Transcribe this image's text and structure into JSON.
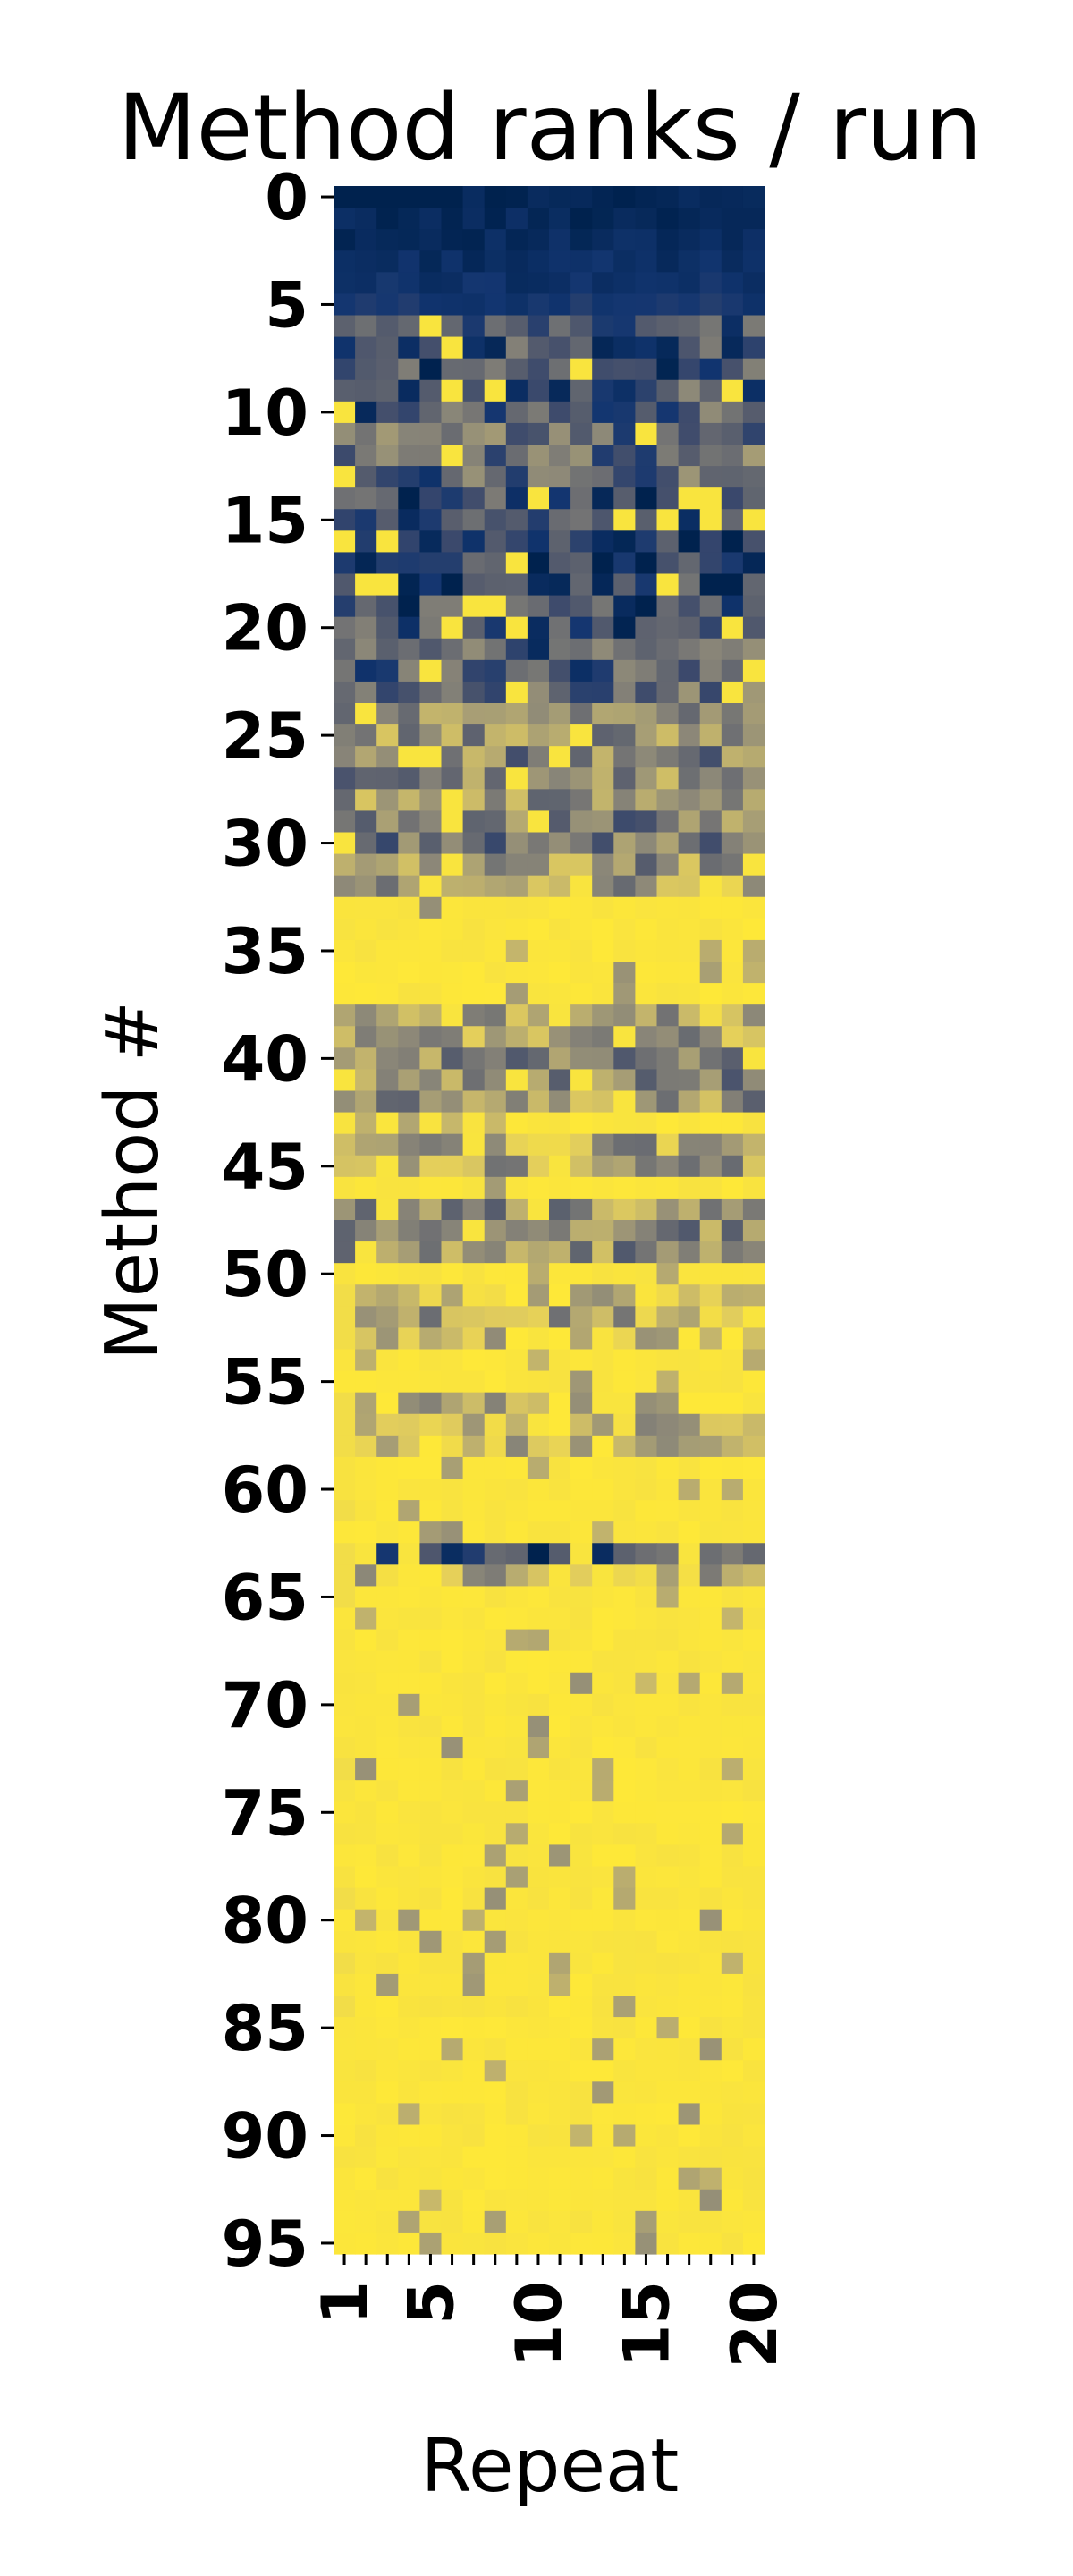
{
  "chart_data": {
    "type": "heatmap",
    "title": "Method ranks / run",
    "xlabel": "Repeat",
    "ylabel": "Method #",
    "n_rows": 96,
    "n_cols": 20,
    "x_ticks": [
      1,
      5,
      10,
      15,
      20
    ],
    "y_ticks": [
      0,
      5,
      10,
      15,
      20,
      25,
      30,
      35,
      40,
      45,
      50,
      55,
      60,
      65,
      70,
      75,
      80,
      85,
      90,
      95
    ],
    "colormap": [
      "#00224e",
      "#123570",
      "#3b496c",
      "#575d6d",
      "#707173",
      "#8a8678",
      "#a69d75",
      "#c4b56c",
      "#e4cf5b",
      "#fee838"
    ],
    "value_range": [
      0,
      1
    ],
    "value_meaning": "normalized rank (0 = best rank, dark blue; 1 = worst rank, yellow)",
    "row_profile": [
      0.02,
      0.04,
      0.05,
      0.07,
      0.09,
      0.12,
      0.28,
      0.3,
      0.3,
      0.32,
      0.33,
      0.4,
      0.42,
      0.38,
      0.25,
      0.23,
      0.2,
      0.18,
      0.22,
      0.27,
      0.3,
      0.35,
      0.37,
      0.45,
      0.6,
      0.62,
      0.55,
      0.58,
      0.6,
      0.52,
      0.5,
      0.62,
      0.7,
      0.9,
      0.92,
      0.94,
      0.95,
      0.9,
      0.72,
      0.65,
      0.6,
      0.58,
      0.62,
      0.88,
      0.7,
      0.66,
      0.92,
      0.62,
      0.58,
      0.6,
      1.0,
      0.78,
      0.7,
      0.85,
      0.92,
      0.88,
      0.82,
      0.8,
      0.84,
      0.9,
      0.95,
      0.96,
      0.95,
      0.25,
      0.78,
      0.95,
      0.96,
      0.9,
      0.94,
      0.96,
      0.95,
      0.96,
      0.96,
      0.97,
      0.96,
      0.96,
      0.93,
      0.86,
      0.96,
      0.96,
      0.97,
      0.97,
      0.97,
      0.97,
      0.97,
      0.96,
      0.97,
      0.95,
      0.96,
      0.97,
      0.97,
      0.97,
      0.98,
      0.98,
      0.98,
      0.98
    ]
  }
}
